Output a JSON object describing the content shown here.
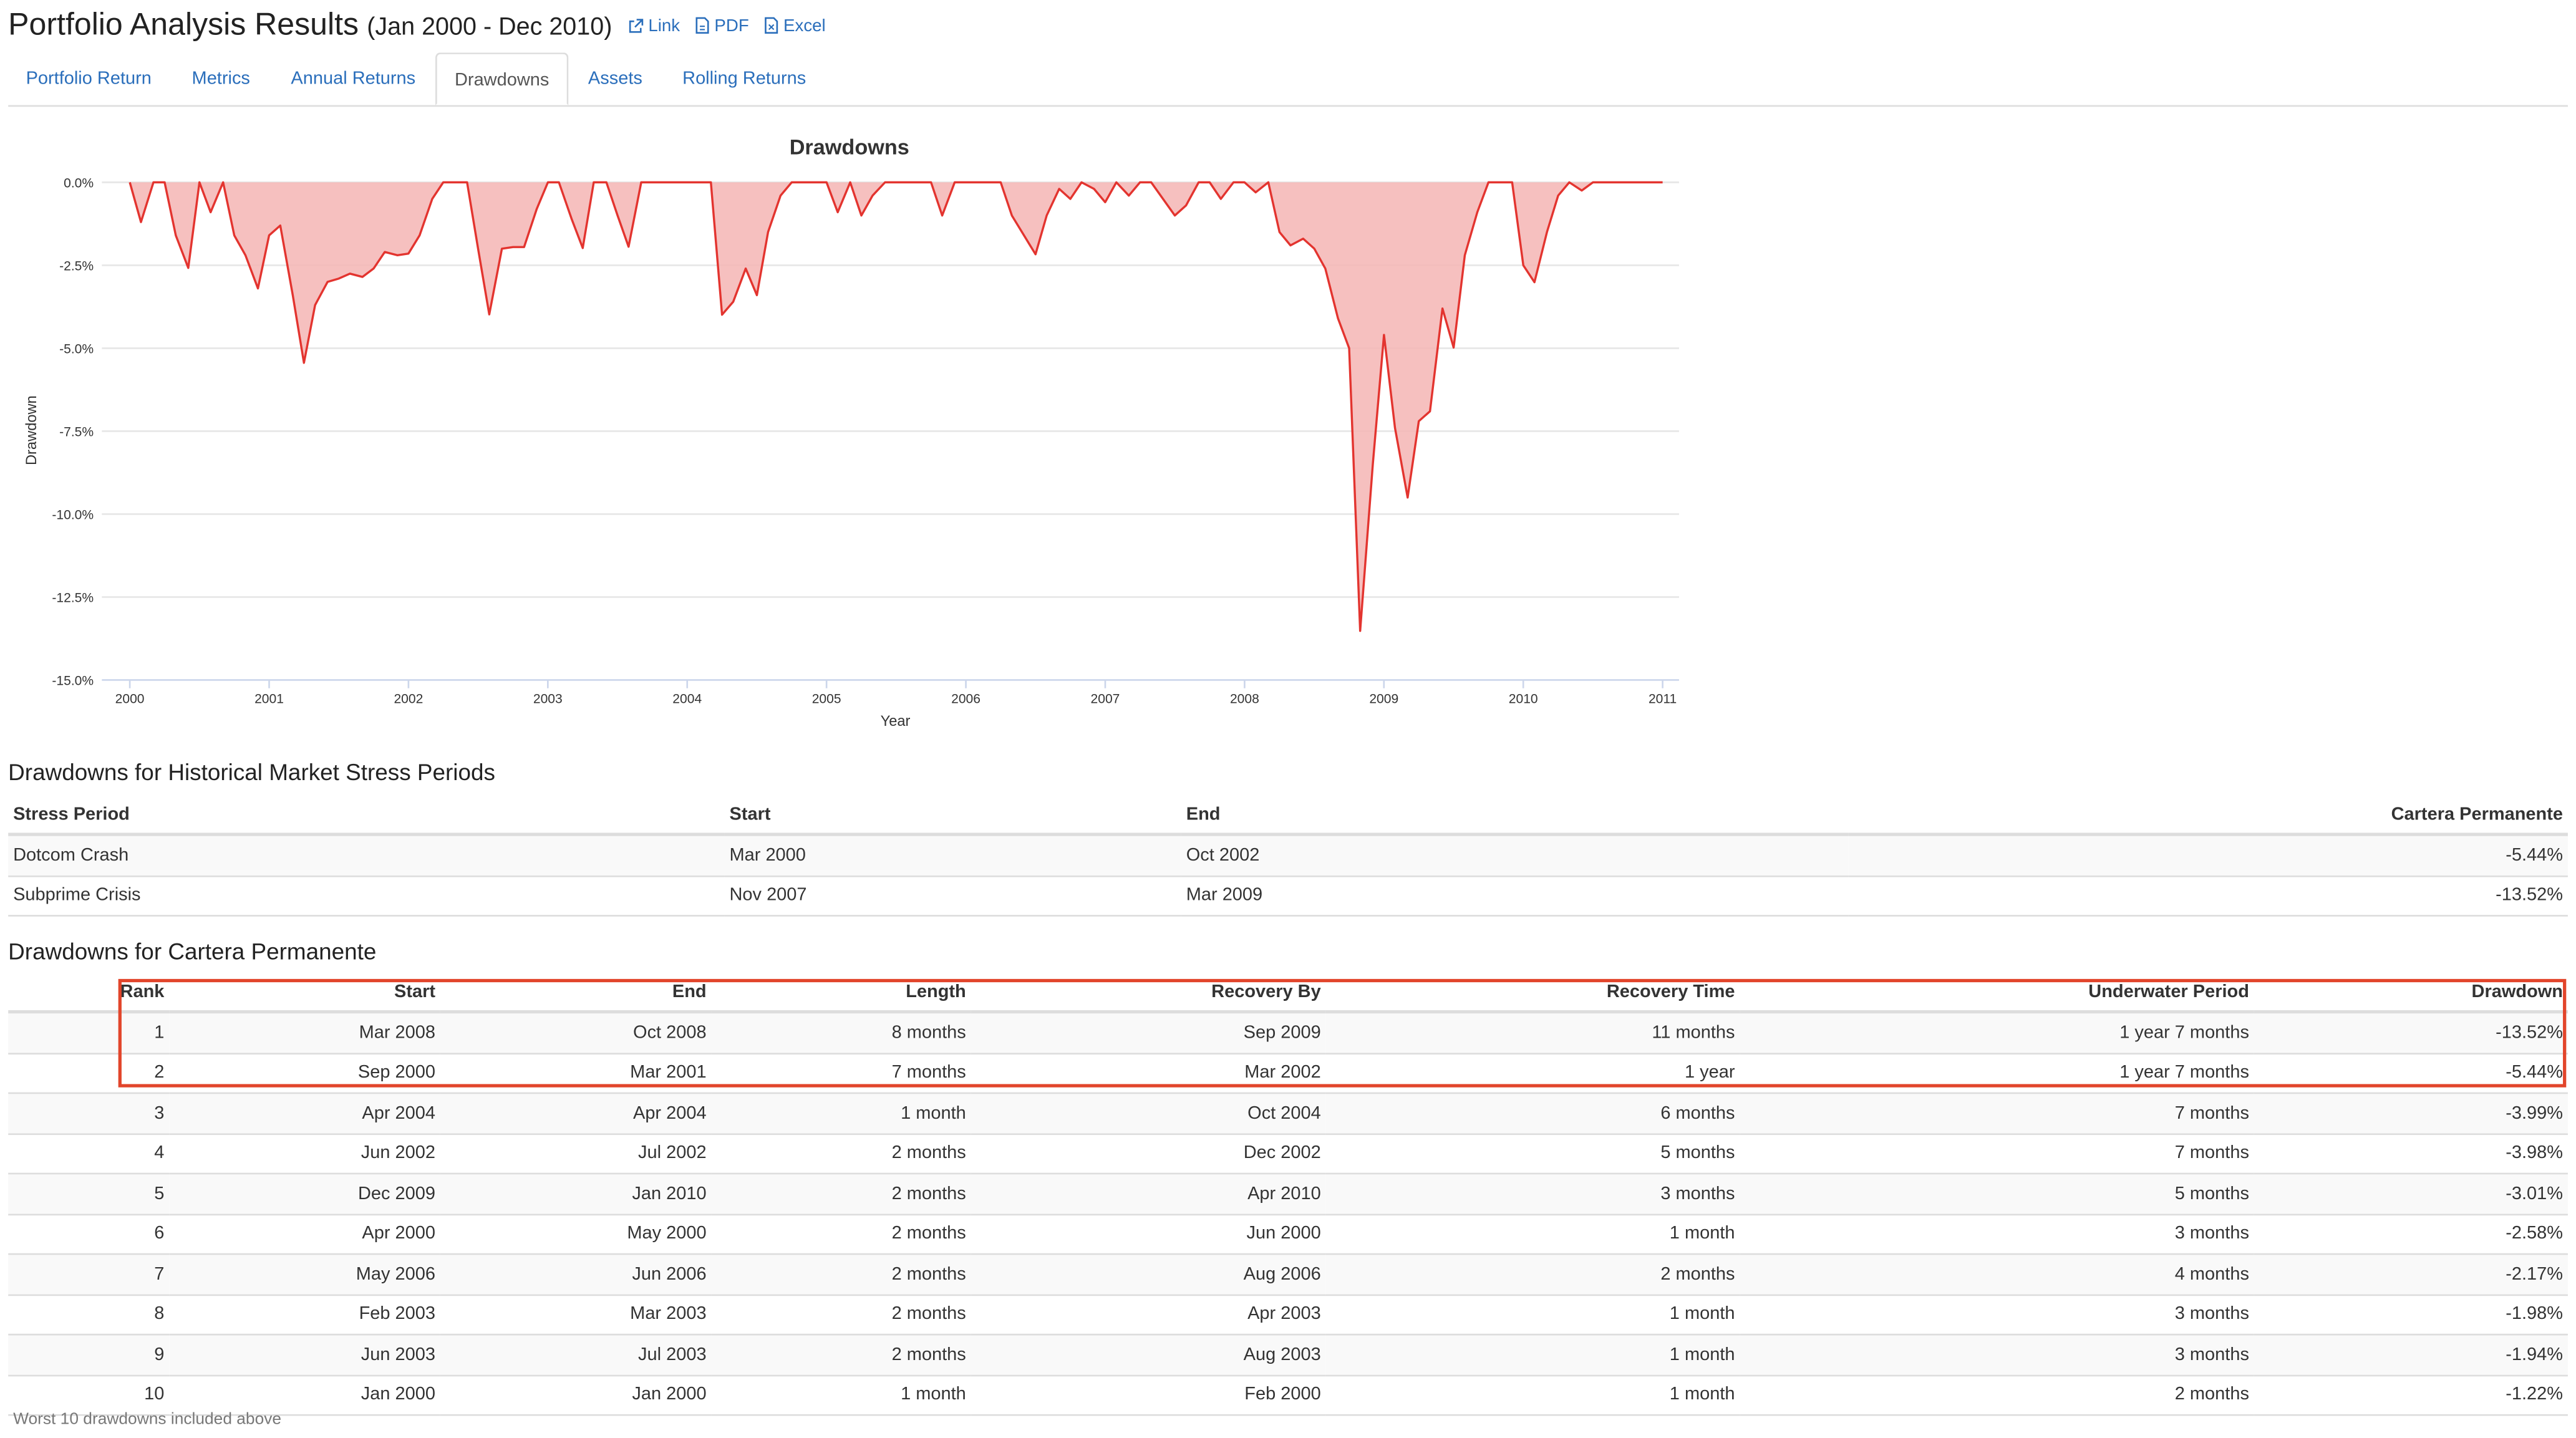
{
  "header": {
    "title": "Portfolio Analysis Results",
    "period": "(Jan 2000 - Dec 2010)",
    "links": [
      "Link",
      "PDF",
      "Excel"
    ]
  },
  "tabs": [
    "Portfolio Return",
    "Metrics",
    "Annual Returns",
    "Drawdowns",
    "Assets",
    "Rolling Returns"
  ],
  "active_tab": "Drawdowns",
  "colors": {
    "line": "#e3342f",
    "fill": "#f5b5b4",
    "link": "#2a6ebb",
    "highlight": "#e2452b"
  },
  "chart_data": {
    "type": "area",
    "title": "Drawdowns",
    "xlabel": "Year",
    "ylabel": "Drawdown",
    "xlim": [
      2000,
      2011
    ],
    "ylim": [
      -15,
      0
    ],
    "x_ticks": [
      "2000",
      "2001",
      "2002",
      "2003",
      "2004",
      "2005",
      "2006",
      "2007",
      "2008",
      "2009",
      "2010",
      "2011"
    ],
    "y_ticks": [
      "0.0%",
      "-2.5%",
      "-5.0%",
      "-7.5%",
      "-10.0%",
      "-12.5%",
      "-15.0%"
    ],
    "series": [
      {
        "values": [
          [
            2000.0,
            0
          ],
          [
            2000.08,
            -1.2
          ],
          [
            2000.17,
            0
          ],
          [
            2000.25,
            0
          ],
          [
            2000.33,
            -1.6
          ],
          [
            2000.42,
            -2.58
          ],
          [
            2000.5,
            0
          ],
          [
            2000.58,
            -0.9
          ],
          [
            2000.67,
            0
          ],
          [
            2000.75,
            -1.6
          ],
          [
            2000.83,
            -2.2
          ],
          [
            2000.92,
            -3.2
          ],
          [
            2001.0,
            -1.6
          ],
          [
            2001.08,
            -1.3
          ],
          [
            2001.17,
            -3.4
          ],
          [
            2001.25,
            -5.44
          ],
          [
            2001.33,
            -3.7
          ],
          [
            2001.42,
            -3.0
          ],
          [
            2001.5,
            -2.9
          ],
          [
            2001.58,
            -2.75
          ],
          [
            2001.67,
            -2.85
          ],
          [
            2001.75,
            -2.6
          ],
          [
            2001.83,
            -2.1
          ],
          [
            2001.92,
            -2.2
          ],
          [
            2002.0,
            -2.15
          ],
          [
            2002.08,
            -1.6
          ],
          [
            2002.17,
            -0.5
          ],
          [
            2002.25,
            0
          ],
          [
            2002.33,
            0
          ],
          [
            2002.42,
            0
          ],
          [
            2002.5,
            -2.0
          ],
          [
            2002.58,
            -3.98
          ],
          [
            2002.67,
            -2.0
          ],
          [
            2002.75,
            -1.95
          ],
          [
            2002.83,
            -1.95
          ],
          [
            2002.92,
            -0.8
          ],
          [
            2003.0,
            0
          ],
          [
            2003.08,
            0
          ],
          [
            2003.17,
            -1.1
          ],
          [
            2003.25,
            -1.98
          ],
          [
            2003.33,
            0
          ],
          [
            2003.42,
            0
          ],
          [
            2003.5,
            -1.0
          ],
          [
            2003.58,
            -1.94
          ],
          [
            2003.67,
            0
          ],
          [
            2003.75,
            0
          ],
          [
            2004.0,
            0
          ],
          [
            2004.17,
            0
          ],
          [
            2004.25,
            -3.99
          ],
          [
            2004.33,
            -3.6
          ],
          [
            2004.42,
            -2.6
          ],
          [
            2004.5,
            -3.4
          ],
          [
            2004.58,
            -1.5
          ],
          [
            2004.67,
            -0.4
          ],
          [
            2004.75,
            0
          ],
          [
            2004.83,
            0
          ],
          [
            2004.92,
            0
          ],
          [
            2005.0,
            0
          ],
          [
            2005.08,
            -0.9
          ],
          [
            2005.17,
            0
          ],
          [
            2005.25,
            -1.0
          ],
          [
            2005.33,
            -0.4
          ],
          [
            2005.42,
            0
          ],
          [
            2005.5,
            0
          ],
          [
            2005.75,
            0
          ],
          [
            2005.83,
            -1.0
          ],
          [
            2005.92,
            0
          ],
          [
            2006.0,
            0
          ],
          [
            2006.25,
            0
          ],
          [
            2006.33,
            -1.0
          ],
          [
            2006.5,
            -2.17
          ],
          [
            2006.58,
            -1.0
          ],
          [
            2006.67,
            -0.2
          ],
          [
            2006.75,
            -0.5
          ],
          [
            2006.83,
            0
          ],
          [
            2006.92,
            -0.2
          ],
          [
            2007.0,
            -0.6
          ],
          [
            2007.08,
            0
          ],
          [
            2007.17,
            -0.4
          ],
          [
            2007.25,
            0
          ],
          [
            2007.33,
            0
          ],
          [
            2007.5,
            -1.0
          ],
          [
            2007.58,
            -0.7
          ],
          [
            2007.67,
            0
          ],
          [
            2007.75,
            0
          ],
          [
            2007.83,
            -0.5
          ],
          [
            2007.92,
            0
          ],
          [
            2008.0,
            0
          ],
          [
            2008.08,
            -0.3
          ],
          [
            2008.17,
            0
          ],
          [
            2008.25,
            -1.5
          ],
          [
            2008.33,
            -1.9
          ],
          [
            2008.42,
            -1.7
          ],
          [
            2008.5,
            -2.0
          ],
          [
            2008.58,
            -2.6
          ],
          [
            2008.67,
            -4.1
          ],
          [
            2008.75,
            -5.0
          ],
          [
            2008.83,
            -13.52
          ],
          [
            2008.92,
            -8.5
          ],
          [
            2009.0,
            -4.6
          ],
          [
            2009.08,
            -7.4
          ],
          [
            2009.17,
            -9.5
          ],
          [
            2009.25,
            -7.2
          ],
          [
            2009.33,
            -6.9
          ],
          [
            2009.42,
            -3.8
          ],
          [
            2009.5,
            -4.98
          ],
          [
            2009.58,
            -2.2
          ],
          [
            2009.67,
            -0.9
          ],
          [
            2009.75,
            0
          ],
          [
            2009.83,
            0
          ],
          [
            2009.92,
            0
          ],
          [
            2010.0,
            -2.5
          ],
          [
            2010.08,
            -3.01
          ],
          [
            2010.17,
            -1.5
          ],
          [
            2010.25,
            -0.4
          ],
          [
            2010.33,
            0
          ],
          [
            2010.42,
            -0.25
          ],
          [
            2010.5,
            0
          ],
          [
            2010.58,
            0
          ],
          [
            2011.0,
            0
          ]
        ]
      }
    ]
  },
  "stress": {
    "heading": "Drawdowns for Historical Market Stress Periods",
    "columns": [
      "Stress Period",
      "Start",
      "End",
      "Cartera Permanente"
    ],
    "rows": [
      [
        "Dotcom Crash",
        "Mar 2000",
        "Oct 2002",
        "-5.44%"
      ],
      [
        "Subprime Crisis",
        "Nov 2007",
        "Mar 2009",
        "-13.52%"
      ]
    ]
  },
  "drawdowns": {
    "heading": "Drawdowns for Cartera Permanente",
    "columns": [
      "Rank",
      "Start",
      "End",
      "Length",
      "Recovery By",
      "Recovery Time",
      "Underwater Period",
      "Drawdown"
    ],
    "rows": [
      [
        "1",
        "Mar 2008",
        "Oct 2008",
        "8 months",
        "Sep 2009",
        "11 months",
        "1 year 7 months",
        "-13.52%"
      ],
      [
        "2",
        "Sep 2000",
        "Mar 2001",
        "7 months",
        "Mar 2002",
        "1 year",
        "1 year 7 months",
        "-5.44%"
      ],
      [
        "3",
        "Apr 2004",
        "Apr 2004",
        "1 month",
        "Oct 2004",
        "6 months",
        "7 months",
        "-3.99%"
      ],
      [
        "4",
        "Jun 2002",
        "Jul 2002",
        "2 months",
        "Dec 2002",
        "5 months",
        "7 months",
        "-3.98%"
      ],
      [
        "5",
        "Dec 2009",
        "Jan 2010",
        "2 months",
        "Apr 2010",
        "3 months",
        "5 months",
        "-3.01%"
      ],
      [
        "6",
        "Apr 2000",
        "May 2000",
        "2 months",
        "Jun 2000",
        "1 month",
        "3 months",
        "-2.58%"
      ],
      [
        "7",
        "May 2006",
        "Jun 2006",
        "2 months",
        "Aug 2006",
        "2 months",
        "4 months",
        "-2.17%"
      ],
      [
        "8",
        "Feb 2003",
        "Mar 2003",
        "2 months",
        "Apr 2003",
        "1 month",
        "3 months",
        "-1.98%"
      ],
      [
        "9",
        "Jun 2003",
        "Jul 2003",
        "2 months",
        "Aug 2003",
        "1 month",
        "3 months",
        "-1.94%"
      ],
      [
        "10",
        "Jan 2000",
        "Jan 2000",
        "1 month",
        "Feb 2000",
        "1 month",
        "2 months",
        "-1.22%"
      ]
    ],
    "footnote": "Worst 10 drawdowns included above"
  }
}
